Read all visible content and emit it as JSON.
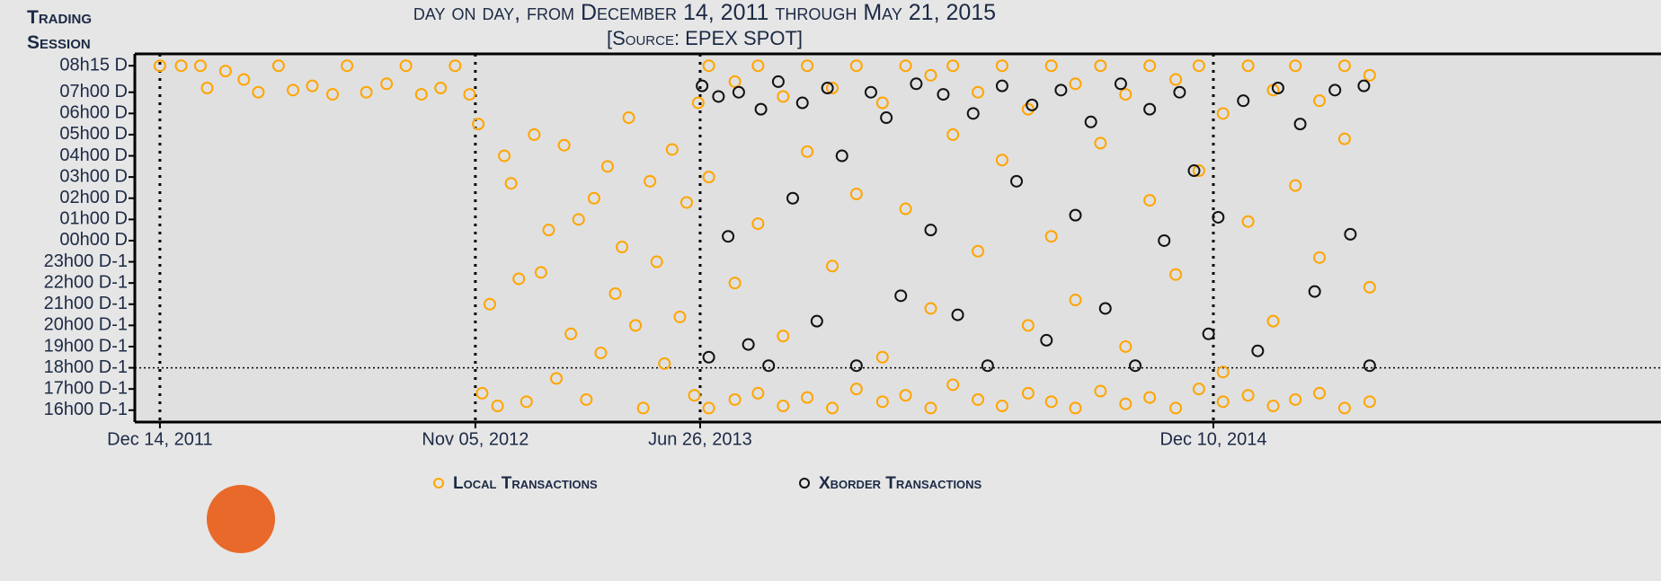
{
  "chart_data": {
    "type": "scatter",
    "subtitle": "day on day, from December 14, 2011 through May 21, 2015",
    "source": "[Source: EPEX SPOT]",
    "ylabel": "Trading Session",
    "xlim": [
      "2011-11-18",
      "2016-03-18"
    ],
    "xticks": [
      {
        "value": "2011-12-14",
        "label": "Dec 14, 2011"
      },
      {
        "value": "2012-11-05",
        "label": "Nov 05, 2012"
      },
      {
        "value": "2013-06-26",
        "label": "Jun 26, 2013"
      },
      {
        "value": "2014-12-10",
        "label": "Dec 10, 2014"
      }
    ],
    "ylim": [
      -8.56,
      8.81
    ],
    "yticks": [
      {
        "value": 8.25,
        "label": "08h15 D"
      },
      {
        "value": 7,
        "label": "07h00 D"
      },
      {
        "value": 6,
        "label": "06h00 D"
      },
      {
        "value": 5,
        "label": "05h00 D"
      },
      {
        "value": 4,
        "label": "04h00 D"
      },
      {
        "value": 3,
        "label": "03h00 D"
      },
      {
        "value": 2,
        "label": "02h00 D"
      },
      {
        "value": 1,
        "label": "01h00 D"
      },
      {
        "value": 0,
        "label": "00h00 D"
      },
      {
        "value": -1,
        "label": "23h00 D-1"
      },
      {
        "value": -2,
        "label": "22h00 D-1"
      },
      {
        "value": -3,
        "label": "21h00 D-1"
      },
      {
        "value": -4,
        "label": "20h00 D-1"
      },
      {
        "value": -5,
        "label": "19h00 D-1"
      },
      {
        "value": -6,
        "label": "18h00 D-1"
      },
      {
        "value": -7,
        "label": "17h00 D-1"
      },
      {
        "value": -8,
        "label": "16h00 D-1"
      }
    ],
    "reference_line": -6,
    "grid": "dotted-x",
    "series": [
      {
        "name": "Local Transactions",
        "color": "#ffa500",
        "x": [
          "2011-12-14",
          "2012-01-05",
          "2012-01-25",
          "2012-02-01",
          "2012-02-20",
          "2012-03-10",
          "2012-03-25",
          "2012-04-15",
          "2012-04-30",
          "2012-05-20",
          "2012-06-10",
          "2012-06-25",
          "2012-07-15",
          "2012-08-05",
          "2012-08-25",
          "2012-09-10",
          "2012-09-30",
          "2012-10-15",
          "2012-10-30",
          "2012-11-08",
          "2012-11-12",
          "2012-11-20",
          "2012-11-28",
          "2012-12-05",
          "2012-12-12",
          "2012-12-20",
          "2012-12-28",
          "2013-01-05",
          "2013-01-12",
          "2013-01-20",
          "2013-01-28",
          "2013-02-05",
          "2013-02-12",
          "2013-02-20",
          "2013-02-28",
          "2013-03-08",
          "2013-03-15",
          "2013-03-22",
          "2013-03-30",
          "2013-04-06",
          "2013-04-13",
          "2013-04-20",
          "2013-04-28",
          "2013-05-05",
          "2013-05-12",
          "2013-05-20",
          "2013-05-28",
          "2013-06-05",
          "2013-06-12",
          "2013-06-20",
          "2013-06-24",
          "2013-07-05",
          "2013-07-05",
          "2013-07-05",
          "2013-08-01",
          "2013-08-01",
          "2013-08-01",
          "2013-08-25",
          "2013-08-25",
          "2013-08-25",
          "2013-09-20",
          "2013-09-20",
          "2013-09-20",
          "2013-10-15",
          "2013-10-15",
          "2013-10-15",
          "2013-11-10",
          "2013-11-10",
          "2013-11-10",
          "2013-12-05",
          "2013-12-05",
          "2013-12-05",
          "2014-01-01",
          "2014-01-01",
          "2014-01-01",
          "2014-01-25",
          "2014-01-25",
          "2014-01-25",
          "2014-02-20",
          "2014-02-20",
          "2014-02-20",
          "2014-03-15",
          "2014-03-15",
          "2014-03-15",
          "2014-04-10",
          "2014-04-10",
          "2014-04-10",
          "2014-05-05",
          "2014-05-05",
          "2014-05-05",
          "2014-06-01",
          "2014-06-01",
          "2014-06-01",
          "2014-06-25",
          "2014-06-25",
          "2014-06-25",
          "2014-07-20",
          "2014-07-20",
          "2014-07-20",
          "2014-08-15",
          "2014-08-15",
          "2014-08-15",
          "2014-09-10",
          "2014-09-10",
          "2014-09-10",
          "2014-10-05",
          "2014-10-05",
          "2014-10-05",
          "2014-11-01",
          "2014-11-01",
          "2014-11-01",
          "2014-11-25",
          "2014-11-25",
          "2014-11-25",
          "2014-12-20",
          "2014-12-20",
          "2014-12-20",
          "2015-01-15",
          "2015-01-15",
          "2015-01-15",
          "2015-02-10",
          "2015-02-10",
          "2015-02-10",
          "2015-03-05",
          "2015-03-05",
          "2015-03-05",
          "2015-03-30",
          "2015-03-30",
          "2015-03-30",
          "2015-04-25",
          "2015-04-25",
          "2015-04-25",
          "2015-05-21",
          "2015-05-21",
          "2015-05-21"
        ],
        "values": [
          8.25,
          8.25,
          8.25,
          7.2,
          8.0,
          7.6,
          7.0,
          8.25,
          7.1,
          7.3,
          6.9,
          8.25,
          7.0,
          7.4,
          8.25,
          6.9,
          7.2,
          8.25,
          6.9,
          5.5,
          -7.2,
          -3.0,
          -7.8,
          4.0,
          2.7,
          -1.8,
          -7.6,
          5.0,
          -1.5,
          0.5,
          -6.5,
          4.5,
          -4.4,
          1.0,
          -7.5,
          2.0,
          -5.3,
          3.5,
          -2.5,
          -0.3,
          5.8,
          -4.0,
          -7.9,
          2.8,
          -1.0,
          -5.8,
          4.3,
          -3.6,
          1.8,
          -7.3,
          6.5,
          8.25,
          -7.9,
          3.0,
          7.5,
          -7.5,
          -2.0,
          8.25,
          -7.2,
          0.8,
          6.8,
          -7.8,
          -4.5,
          8.25,
          -7.4,
          4.2,
          7.2,
          -7.9,
          -1.2,
          8.25,
          -7.0,
          2.2,
          6.5,
          -7.6,
          -5.5,
          8.25,
          -7.3,
          1.5,
          7.8,
          -7.9,
          -3.2,
          8.25,
          -6.8,
          5.0,
          7.0,
          -7.5,
          -0.5,
          8.25,
          -7.8,
          3.8,
          6.2,
          -7.2,
          -4.0,
          8.25,
          -7.6,
          0.2,
          7.4,
          -7.9,
          -2.8,
          8.25,
          -7.1,
          4.6,
          6.9,
          -7.7,
          -5.0,
          8.25,
          -7.4,
          1.9,
          7.6,
          -7.9,
          -1.6,
          8.25,
          -7.0,
          3.3,
          6.0,
          -7.6,
          -6.2,
          8.25,
          -7.3,
          0.9,
          7.1,
          -7.8,
          -3.8,
          8.25,
          -7.5,
          2.6,
          6.6,
          -7.2,
          -0.8,
          8.25,
          -7.9,
          4.8,
          7.8,
          -7.6,
          -2.2
        ]
      },
      {
        "name": "Xborder Transactions",
        "color": "#111111",
        "x": [
          "2013-06-28",
          "2013-07-05",
          "2013-07-15",
          "2013-07-25",
          "2013-08-05",
          "2013-08-15",
          "2013-08-28",
          "2013-09-05",
          "2013-09-15",
          "2013-09-30",
          "2013-10-10",
          "2013-10-25",
          "2013-11-05",
          "2013-11-20",
          "2013-12-05",
          "2013-12-20",
          "2014-01-05",
          "2014-01-20",
          "2014-02-05",
          "2014-02-20",
          "2014-03-05",
          "2014-03-20",
          "2014-04-05",
          "2014-04-20",
          "2014-05-05",
          "2014-05-20",
          "2014-06-05",
          "2014-06-20",
          "2014-07-05",
          "2014-07-20",
          "2014-08-05",
          "2014-08-20",
          "2014-09-05",
          "2014-09-20",
          "2014-10-05",
          "2014-10-20",
          "2014-11-05",
          "2014-11-20",
          "2014-12-05",
          "2014-12-15",
          "2015-01-10",
          "2015-01-25",
          "2015-02-15",
          "2015-03-10",
          "2015-03-25",
          "2015-04-15",
          "2015-05-01",
          "2015-05-15",
          "2015-05-21"
        ],
        "values": [
          7.3,
          -5.5,
          6.8,
          0.2,
          7.0,
          -4.9,
          6.2,
          -5.9,
          7.5,
          2.0,
          6.5,
          -3.8,
          7.2,
          4.0,
          -5.9,
          7.0,
          5.8,
          -2.6,
          7.4,
          0.5,
          6.9,
          -3.5,
          6.0,
          -5.9,
          7.3,
          2.8,
          6.4,
          -4.7,
          7.1,
          1.2,
          5.6,
          -3.2,
          7.4,
          -5.9,
          6.2,
          0.0,
          7.0,
          3.3,
          -4.4,
          1.1,
          6.6,
          -5.2,
          7.2,
          5.5,
          -2.4,
          7.1,
          0.3,
          7.3,
          -5.9
        ]
      }
    ]
  }
}
